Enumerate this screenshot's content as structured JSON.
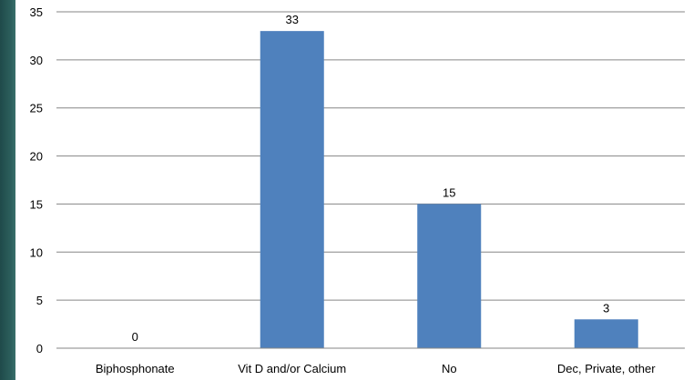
{
  "chart_data": {
    "type": "bar",
    "categories": [
      "Biphosphonate",
      "Vit D and/or Calcium",
      "No",
      "Dec, Private, other"
    ],
    "values": [
      0,
      33,
      15,
      3
    ],
    "title": "",
    "xlabel": "",
    "ylabel": "",
    "ylim": [
      0,
      35
    ],
    "yticks": [
      0,
      5,
      10,
      15,
      20,
      25,
      30,
      35
    ],
    "grid": true,
    "legend": "none",
    "bar_color": "#4f81bd",
    "grid_color": "#868686",
    "data_labels": true
  },
  "colors": {
    "side_stripe": "#2c5f5c"
  }
}
